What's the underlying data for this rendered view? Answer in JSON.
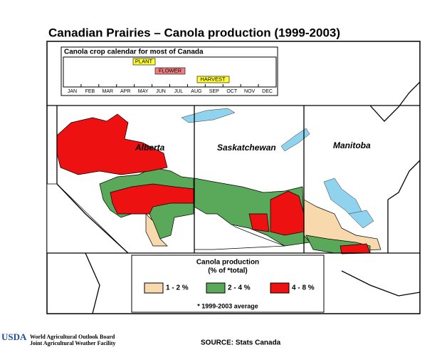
{
  "title": "Canadian Prairies – Canola production (1999-2003)",
  "calendar": {
    "title": "Canola crop calendar for most of Canada",
    "stages": [
      "PLANT",
      "FLOWER",
      "HARVEST"
    ],
    "months": [
      "JAN",
      "FEB",
      "MAR",
      "APR",
      "MAY",
      "JUN",
      "JUL",
      "AUG",
      "SEP",
      "OCT",
      "NOV",
      "DEC"
    ]
  },
  "map": {
    "regions": [
      "Alberta",
      "Saskatchewan",
      "Manitoba"
    ]
  },
  "legend": {
    "title": "Canola production",
    "subtitle": "(% of *total)",
    "items": [
      {
        "label": "1 - 2 %",
        "color": "#f7d9ad"
      },
      {
        "label": "2 - 4 %",
        "color": "#5aa85a"
      },
      {
        "label": "4 - 8 %",
        "color": "#ee1111"
      }
    ],
    "note": "* 1999-2003 average"
  },
  "footer": {
    "logo": "USDA",
    "org_lines": [
      "World Agricultural Outlook Board",
      "Joint Agricultural Weather Facility"
    ],
    "source": "SOURCE: Stats Canada"
  }
}
